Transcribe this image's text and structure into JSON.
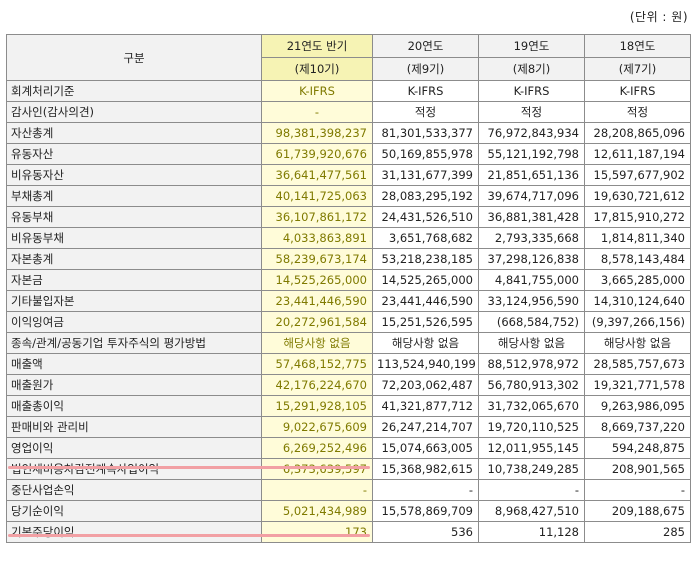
{
  "unit_label": "(단위 : 원)",
  "header": {
    "category": "구분",
    "periods": [
      {
        "year": "21연도 반기",
        "term": "(제10기)"
      },
      {
        "year": "20연도",
        "term": "(제9기)"
      },
      {
        "year": "19연도",
        "term": "(제8기)"
      },
      {
        "year": "18연도",
        "term": "(제7기)"
      }
    ]
  },
  "rows": [
    {
      "label": "회계처리기준",
      "align": "ctr",
      "values": [
        "K-IFRS",
        "K-IFRS",
        "K-IFRS",
        "K-IFRS"
      ]
    },
    {
      "label": "감사인(감사의견)",
      "align": "ctr",
      "values": [
        "-",
        "적정",
        "적정",
        "적정"
      ]
    },
    {
      "label": "자산총계",
      "align": "num",
      "values": [
        "98,381,398,237",
        "81,301,533,377",
        "76,972,843,934",
        "28,208,865,096"
      ]
    },
    {
      "label": "유동자산",
      "align": "num",
      "values": [
        "61,739,920,676",
        "50,169,855,978",
        "55,121,192,798",
        "12,611,187,194"
      ]
    },
    {
      "label": "비유동자산",
      "align": "num",
      "values": [
        "36,641,477,561",
        "31,131,677,399",
        "21,851,651,136",
        "15,597,677,902"
      ]
    },
    {
      "label": "부채총계",
      "align": "num",
      "values": [
        "40,141,725,063",
        "28,083,295,192",
        "39,674,717,096",
        "19,630,721,612"
      ]
    },
    {
      "label": "유동부채",
      "align": "num",
      "values": [
        "36,107,861,172",
        "24,431,526,510",
        "36,881,381,428",
        "17,815,910,272"
      ]
    },
    {
      "label": "비유동부채",
      "align": "num",
      "values": [
        "4,033,863,891",
        "3,651,768,682",
        "2,793,335,668",
        "1,814,811,340"
      ]
    },
    {
      "label": "자본총계",
      "align": "num",
      "values": [
        "58,239,673,174",
        "53,218,238,185",
        "37,298,126,838",
        "8,578,143,484"
      ]
    },
    {
      "label": "자본금",
      "align": "num",
      "values": [
        "14,525,265,000",
        "14,525,265,000",
        "4,841,755,000",
        "3,665,285,000"
      ]
    },
    {
      "label": "기타불입자본",
      "align": "num",
      "values": [
        "23,441,446,590",
        "23,441,446,590",
        "33,124,956,590",
        "14,310,124,640"
      ]
    },
    {
      "label": "이익잉여금",
      "align": "num",
      "values": [
        "20,272,961,584",
        "15,251,526,595",
        "(668,584,752)",
        "(9,397,266,156)"
      ]
    },
    {
      "label": "종속/관계/공동기업 투자주식의 평가방법",
      "align": "ctr",
      "values": [
        "해당사항 없음",
        "해당사항 없음",
        "해당사항 없음",
        "해당사항 없음"
      ]
    },
    {
      "label": "매출액",
      "align": "num",
      "values": [
        "57,468,152,775",
        "113,524,940,199",
        "88,512,978,972",
        "28,585,757,673"
      ]
    },
    {
      "label": "매출원가",
      "align": "num",
      "values": [
        "42,176,224,670",
        "72,203,062,487",
        "56,780,913,302",
        "19,321,771,578"
      ]
    },
    {
      "label": "매출총이익",
      "align": "num",
      "values": [
        "15,291,928,105",
        "41,321,877,712",
        "31,732,065,670",
        "9,263,986,095"
      ]
    },
    {
      "label": "판매비와 관리비",
      "align": "num",
      "values": [
        "9,022,675,609",
        "26,247,214,707",
        "19,720,110,525",
        "8,669,737,220"
      ]
    },
    {
      "label": "영업이익",
      "align": "num",
      "values": [
        "6,269,252,496",
        "15,074,663,005",
        "12,011,955,145",
        "594,248,875"
      ]
    },
    {
      "label": "법인세비용차감전계속사업이익",
      "align": "num",
      "values": [
        "6,373,639,597",
        "15,368,982,615",
        "10,738,249,285",
        "208,901,565"
      ]
    },
    {
      "label": "중단사업손익",
      "align": "num",
      "values": [
        "-",
        "-",
        "-",
        "-"
      ]
    },
    {
      "label": "당기순이익",
      "align": "num",
      "values": [
        "5,021,434,989",
        "15,578,869,709",
        "8,968,427,510",
        "209,188,675"
      ]
    },
    {
      "label": "기본주당이익",
      "align": "num",
      "values": [
        "173",
        "536",
        "11,128",
        "285"
      ]
    }
  ]
}
